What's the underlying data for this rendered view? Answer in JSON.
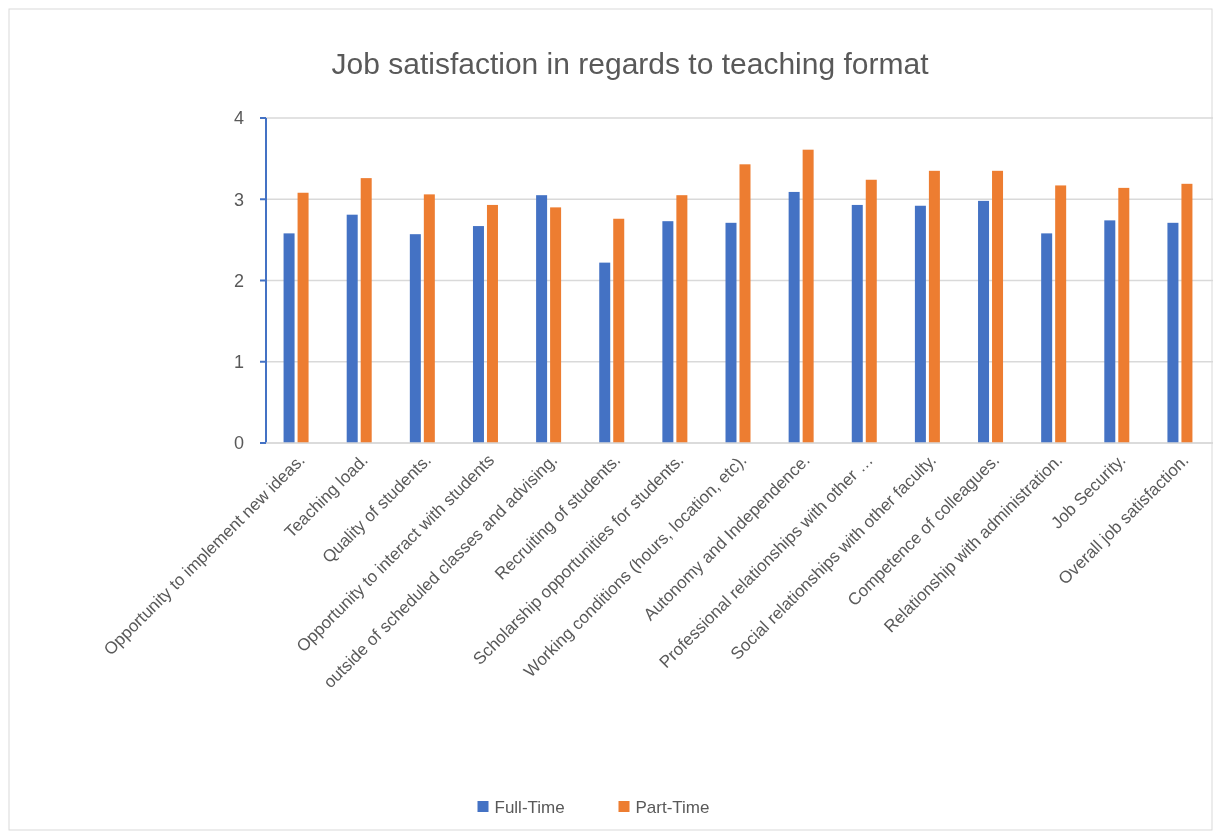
{
  "chart_data": {
    "type": "bar",
    "title": "Job satisfaction in regards to teaching format",
    "categories": [
      "Opportunity to implement new ideas.",
      "Teaching load.",
      "Quality of students.",
      "Opportunity to interact with students",
      "outside of scheduled classes and advising.",
      "Recruiting of students.",
      "Scholarship opportunities for students.",
      "Working conditions (hours, location, etc).",
      "Autonomy and Independence.",
      "Professional relationships with other …",
      "Social relationships with other faculty.",
      "Competence of colleagues.",
      "Relationship with administration.",
      "Job Security.",
      "Overall job satisfaction."
    ],
    "series": [
      {
        "name": "Full-Time",
        "color": "#4472c4",
        "values": [
          2.58,
          2.81,
          2.57,
          2.67,
          3.05,
          2.22,
          2.73,
          2.71,
          3.09,
          2.93,
          2.92,
          2.98,
          2.58,
          2.74,
          2.71
        ]
      },
      {
        "name": "Part-Time",
        "color": "#ed7d31",
        "values": [
          3.08,
          3.26,
          3.06,
          2.93,
          2.9,
          2.76,
          3.05,
          3.43,
          3.61,
          3.24,
          3.35,
          3.35,
          3.17,
          3.14,
          3.19
        ]
      }
    ],
    "ylim": [
      0,
      4
    ],
    "yticks": [
      0,
      1,
      2,
      3,
      4
    ],
    "grid": "y",
    "legend": "bottom"
  }
}
